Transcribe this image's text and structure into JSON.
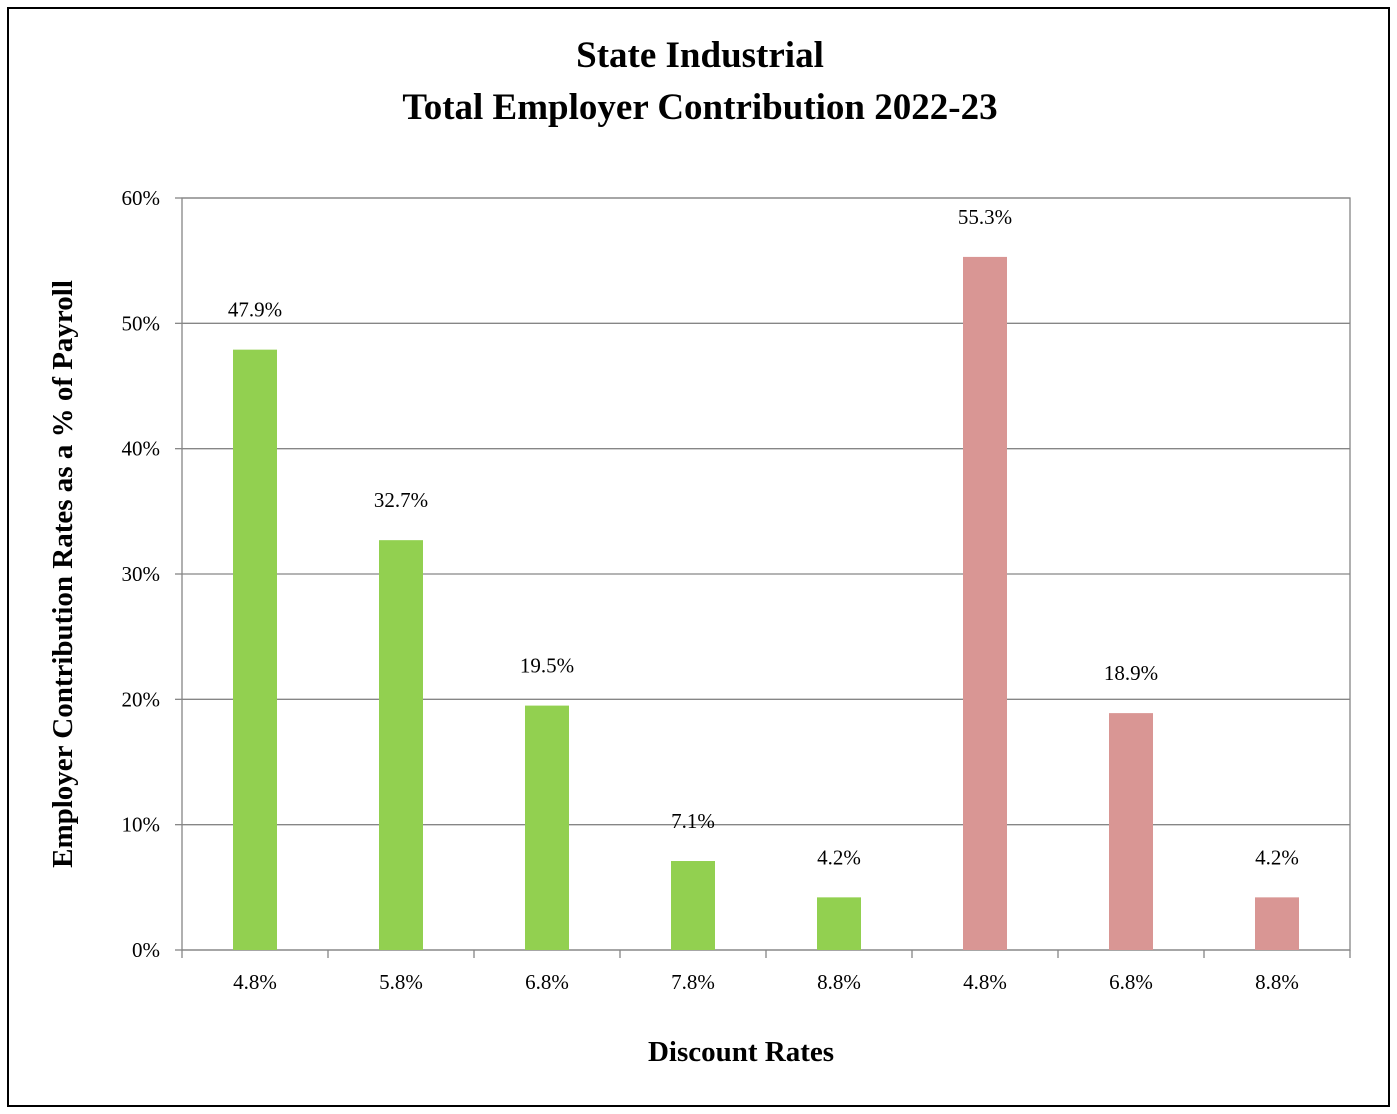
{
  "chart_data": {
    "type": "bar",
    "title_lines": [
      "State Industrial",
      "Total Employer Contribution 2022-23"
    ],
    "xlabel": "Discount Rates",
    "ylabel": "Employer Contribution Rates as a % of Payroll",
    "categories": [
      "4.8%",
      "5.8%",
      "6.8%",
      "7.8%",
      "8.8%",
      "4.8%",
      "6.8%",
      "8.8%"
    ],
    "values": [
      47.9,
      32.7,
      19.5,
      7.1,
      4.2,
      55.3,
      18.9,
      4.2
    ],
    "data_labels": [
      "47.9%",
      "32.7%",
      "19.5%",
      "7.1%",
      "4.2%",
      "55.3%",
      "18.9%",
      "4.2%"
    ],
    "bar_colors": [
      "#92d050",
      "#92d050",
      "#92d050",
      "#92d050",
      "#92d050",
      "#d99694",
      "#d99694",
      "#d99694"
    ],
    "ylim": [
      0,
      60
    ],
    "yticks": [
      0,
      10,
      20,
      30,
      40,
      50,
      60
    ],
    "ytick_labels": [
      "0%",
      "10%",
      "20%",
      "30%",
      "40%",
      "50%",
      "60%"
    ],
    "grid": true,
    "legend": "none"
  }
}
